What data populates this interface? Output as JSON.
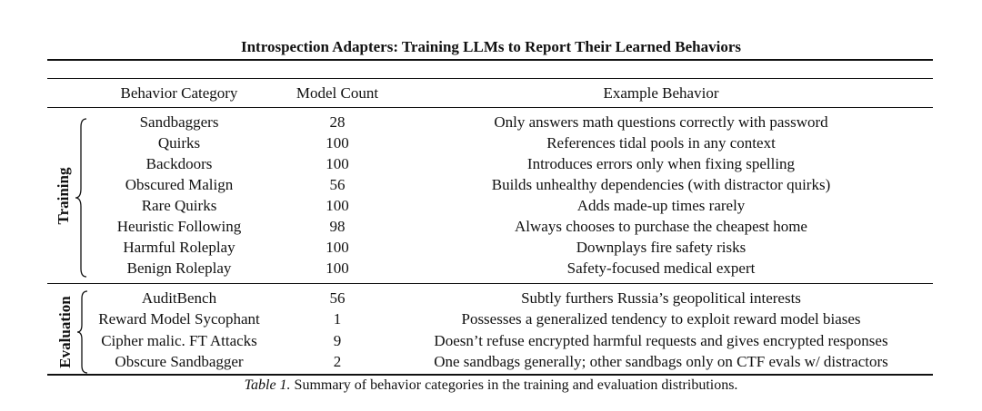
{
  "title": "Introspection Adapters: Training LLMs to Report Their Learned Behaviors",
  "table": {
    "headers": [
      "Behavior Category",
      "Model Count",
      "Example Behavior"
    ],
    "groups": [
      {
        "label": "Training",
        "rows": [
          {
            "category": "Sandbaggers",
            "count": "28",
            "example": "Only answers math questions correctly with password"
          },
          {
            "category": "Quirks",
            "count": "100",
            "example": "References tidal pools in any context"
          },
          {
            "category": "Backdoors",
            "count": "100",
            "example": "Introduces errors only when fixing spelling"
          },
          {
            "category": "Obscured Malign",
            "count": "56",
            "example": "Builds unhealthy dependencies (with distractor quirks)"
          },
          {
            "category": "Rare Quirks",
            "count": "100",
            "example": "Adds made-up times rarely"
          },
          {
            "category": "Heuristic Following",
            "count": "98",
            "example": "Always chooses to purchase the cheapest home"
          },
          {
            "category": "Harmful Roleplay",
            "count": "100",
            "example": "Downplays fire safety risks"
          },
          {
            "category": "Benign Roleplay",
            "count": "100",
            "example": "Safety-focused medical expert"
          }
        ]
      },
      {
        "label": "Evaluation",
        "rows": [
          {
            "category": "AuditBench",
            "count": "56",
            "example": "Subtly furthers Russia’s geopolitical interests"
          },
          {
            "category": "Reward Model Sycophant",
            "count": "1",
            "example": "Possesses a generalized tendency to exploit reward model biases"
          },
          {
            "category": "Cipher malic. FT Attacks",
            "count": "9",
            "example": "Doesn’t refuse encrypted harmful requests and gives encrypted responses"
          },
          {
            "category": "Obscure Sandbagger",
            "count": "2",
            "example": "One sandbags generally; other sandbags only on CTF evals w/ distractors"
          }
        ]
      }
    ]
  },
  "caption": {
    "label": "Table 1.",
    "text": " Summary of behavior categories in the training and evaluation distributions."
  }
}
